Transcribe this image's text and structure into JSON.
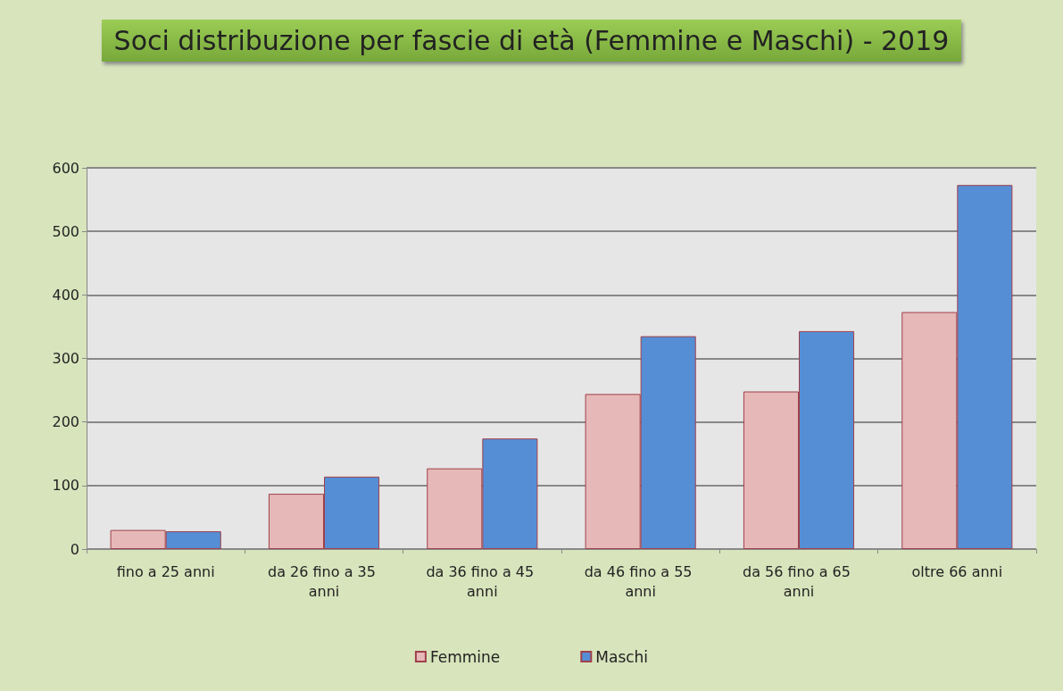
{
  "chart_data": {
    "type": "bar",
    "title": "Soci distribuzione per fascie di età (Femmine e Maschi) - 2019",
    "categories": [
      "fino a 25 anni",
      "da 26 fino a 35 anni",
      "da 36 fino a 45 anni",
      "da 46 fino a 55 anni",
      "da 56 fino a 65 anni",
      "oltre 66 anni"
    ],
    "series": [
      {
        "name": "Femmine",
        "color": "#e6b9b8",
        "values": [
          30,
          87,
          127,
          244,
          248,
          373
        ]
      },
      {
        "name": "Maschi",
        "color": "#558ed5",
        "values": [
          28,
          114,
          174,
          335,
          343,
          573
        ]
      }
    ],
    "ylim": [
      0,
      600
    ],
    "yticks": [
      0,
      100,
      200,
      300,
      400,
      500,
      600
    ],
    "grid": "y",
    "legend": "bottom"
  }
}
